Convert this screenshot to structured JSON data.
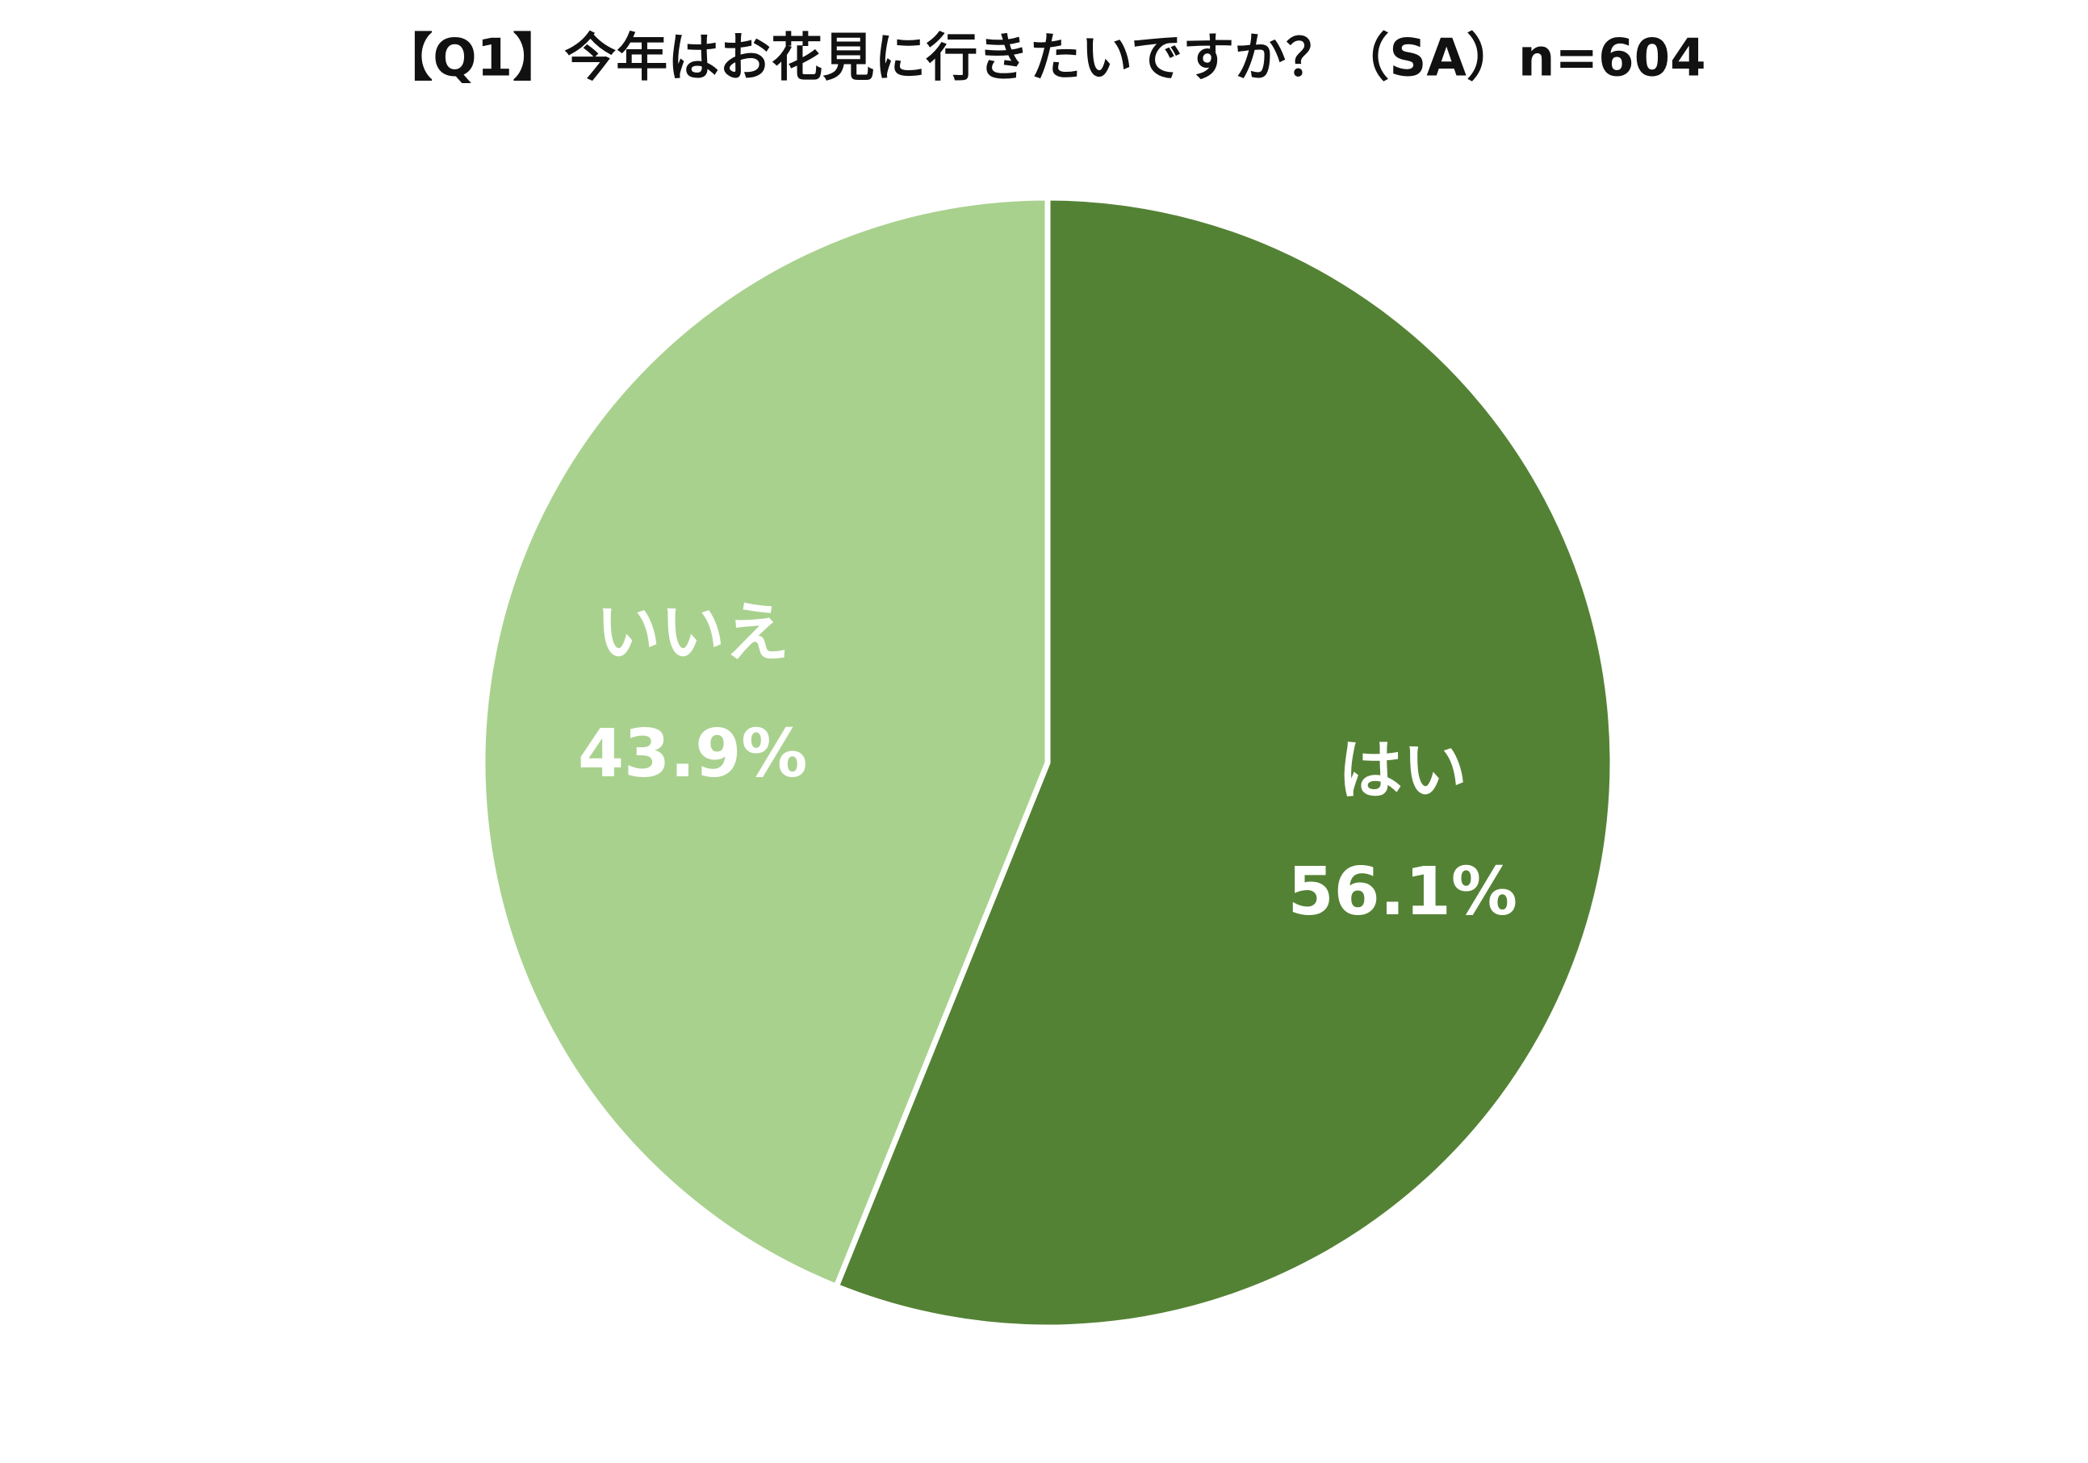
{
  "chart_data": {
    "type": "pie",
    "title": "【Q1】今年はお花見に行きたいですか？（SA）n=604",
    "categories": [
      "はい",
      "いいえ"
    ],
    "values": [
      56.1,
      43.9
    ],
    "value_labels": [
      "56.1%",
      "43.9%"
    ],
    "colors": [
      "#548235",
      "#a9d18e"
    ]
  }
}
